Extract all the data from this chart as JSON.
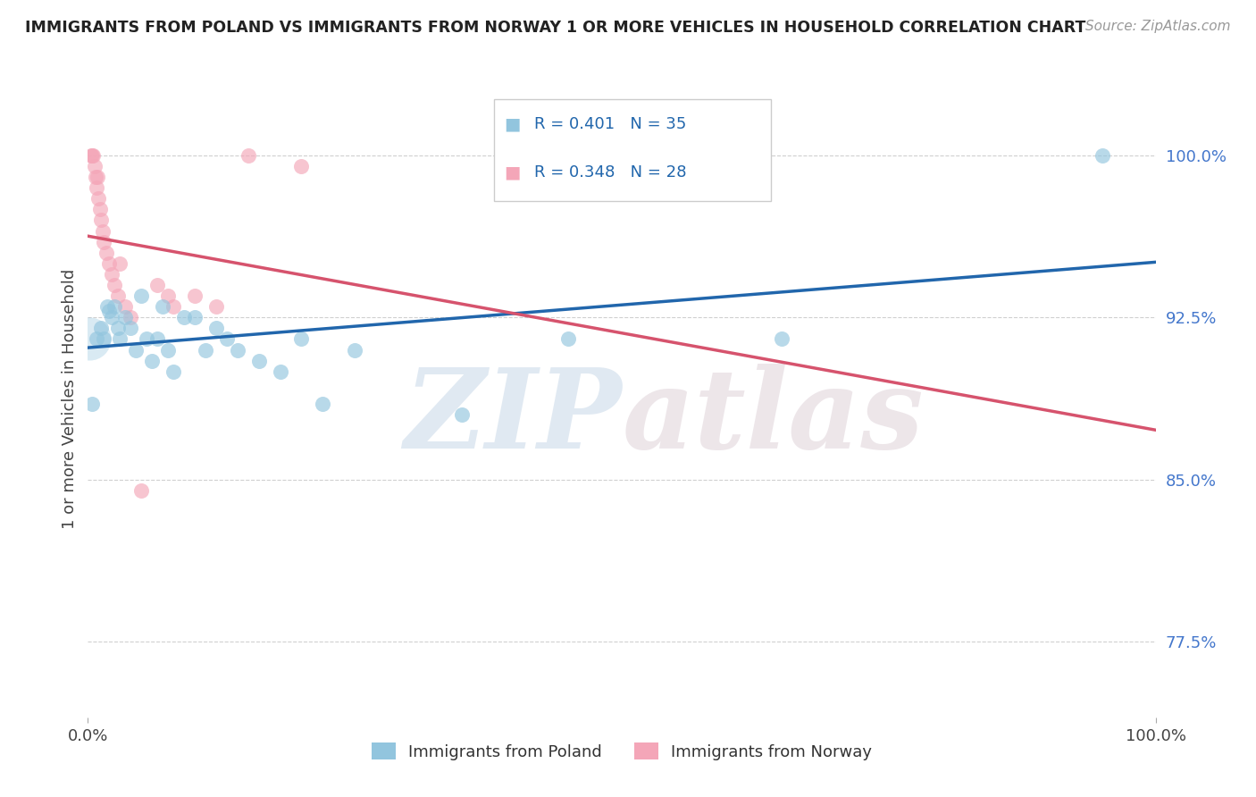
{
  "title": "IMMIGRANTS FROM POLAND VS IMMIGRANTS FROM NORWAY 1 OR MORE VEHICLES IN HOUSEHOLD CORRELATION CHART",
  "source": "Source: ZipAtlas.com",
  "ylabel": "1 or more Vehicles in Household",
  "legend_poland": "Immigrants from Poland",
  "legend_norway": "Immigrants from Norway",
  "R_poland": 0.401,
  "N_poland": 35,
  "R_norway": 0.348,
  "N_norway": 28,
  "color_poland": "#92c5de",
  "color_norway": "#f4a6b8",
  "line_color_poland": "#2166ac",
  "line_color_norway": "#d6536d",
  "poland_x": [
    0.4,
    0.8,
    1.2,
    1.5,
    1.8,
    2.0,
    2.2,
    2.5,
    2.8,
    3.0,
    3.5,
    4.0,
    4.5,
    5.0,
    5.5,
    6.0,
    6.5,
    7.0,
    7.5,
    8.0,
    9.0,
    10.0,
    11.0,
    12.0,
    13.0,
    14.0,
    16.0,
    18.0,
    20.0,
    22.0,
    25.0,
    35.0,
    45.0,
    65.0,
    95.0
  ],
  "poland_y": [
    88.5,
    91.5,
    92.0,
    91.5,
    93.0,
    92.8,
    92.5,
    93.0,
    92.0,
    91.5,
    92.5,
    92.0,
    91.0,
    93.5,
    91.5,
    90.5,
    91.5,
    93.0,
    91.0,
    90.0,
    92.5,
    92.5,
    91.0,
    92.0,
    91.5,
    91.0,
    90.5,
    90.0,
    91.5,
    88.5,
    91.0,
    88.0,
    91.5,
    91.5,
    100.0
  ],
  "norway_x": [
    0.3,
    0.4,
    0.5,
    0.6,
    0.7,
    0.8,
    0.9,
    1.0,
    1.1,
    1.2,
    1.4,
    1.5,
    1.7,
    2.0,
    2.2,
    2.5,
    2.8,
    3.0,
    3.5,
    4.0,
    5.0,
    6.5,
    7.5,
    8.0,
    10.0,
    12.0,
    15.0,
    20.0
  ],
  "norway_y": [
    100.0,
    100.0,
    100.0,
    99.5,
    99.0,
    98.5,
    99.0,
    98.0,
    97.5,
    97.0,
    96.5,
    96.0,
    95.5,
    95.0,
    94.5,
    94.0,
    93.5,
    95.0,
    93.0,
    92.5,
    84.5,
    94.0,
    93.5,
    93.0,
    93.5,
    93.0,
    100.0,
    99.5
  ],
  "xlim": [
    0.0,
    100.0
  ],
  "ylim": [
    74.0,
    103.5
  ],
  "bg_color": "#ffffff",
  "grid_color": "#d0d0d0",
  "watermark_zip": "ZIP",
  "watermark_atlas": "atlas"
}
